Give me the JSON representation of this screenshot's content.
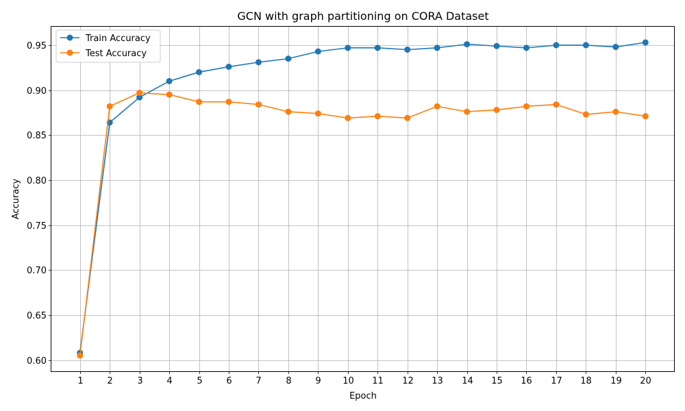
{
  "chart_data": {
    "type": "line",
    "title": "GCN with graph partitioning on CORA Dataset",
    "xlabel": "Epoch",
    "ylabel": "Accuracy",
    "x": [
      1,
      2,
      3,
      4,
      5,
      6,
      7,
      8,
      9,
      10,
      11,
      12,
      13,
      14,
      15,
      16,
      17,
      18,
      19,
      20
    ],
    "xlim": [
      0.04,
      20.96
    ],
    "ylim": [
      0.5875,
      0.9705
    ],
    "yticks": [
      0.6,
      0.65,
      0.7,
      0.75,
      0.8,
      0.85,
      0.9,
      0.95
    ],
    "ytick_labels": [
      "0.60",
      "0.65",
      "0.70",
      "0.75",
      "0.80",
      "0.85",
      "0.90",
      "0.95"
    ],
    "grid": true,
    "legend_position": "top-left",
    "series": [
      {
        "name": "Train Accuracy",
        "color": "#1f77b4",
        "marker": "circle",
        "values": [
          0.608,
          0.864,
          0.892,
          0.91,
          0.92,
          0.926,
          0.931,
          0.935,
          0.943,
          0.947,
          0.947,
          0.945,
          0.947,
          0.951,
          0.949,
          0.947,
          0.95,
          0.95,
          0.948,
          0.953
        ]
      },
      {
        "name": "Test Accuracy",
        "color": "#ff7f0e",
        "marker": "circle",
        "values": [
          0.605,
          0.882,
          0.897,
          0.895,
          0.887,
          0.887,
          0.884,
          0.876,
          0.874,
          0.869,
          0.871,
          0.869,
          0.882,
          0.876,
          0.878,
          0.882,
          0.884,
          0.873,
          0.876,
          0.871
        ]
      }
    ]
  }
}
